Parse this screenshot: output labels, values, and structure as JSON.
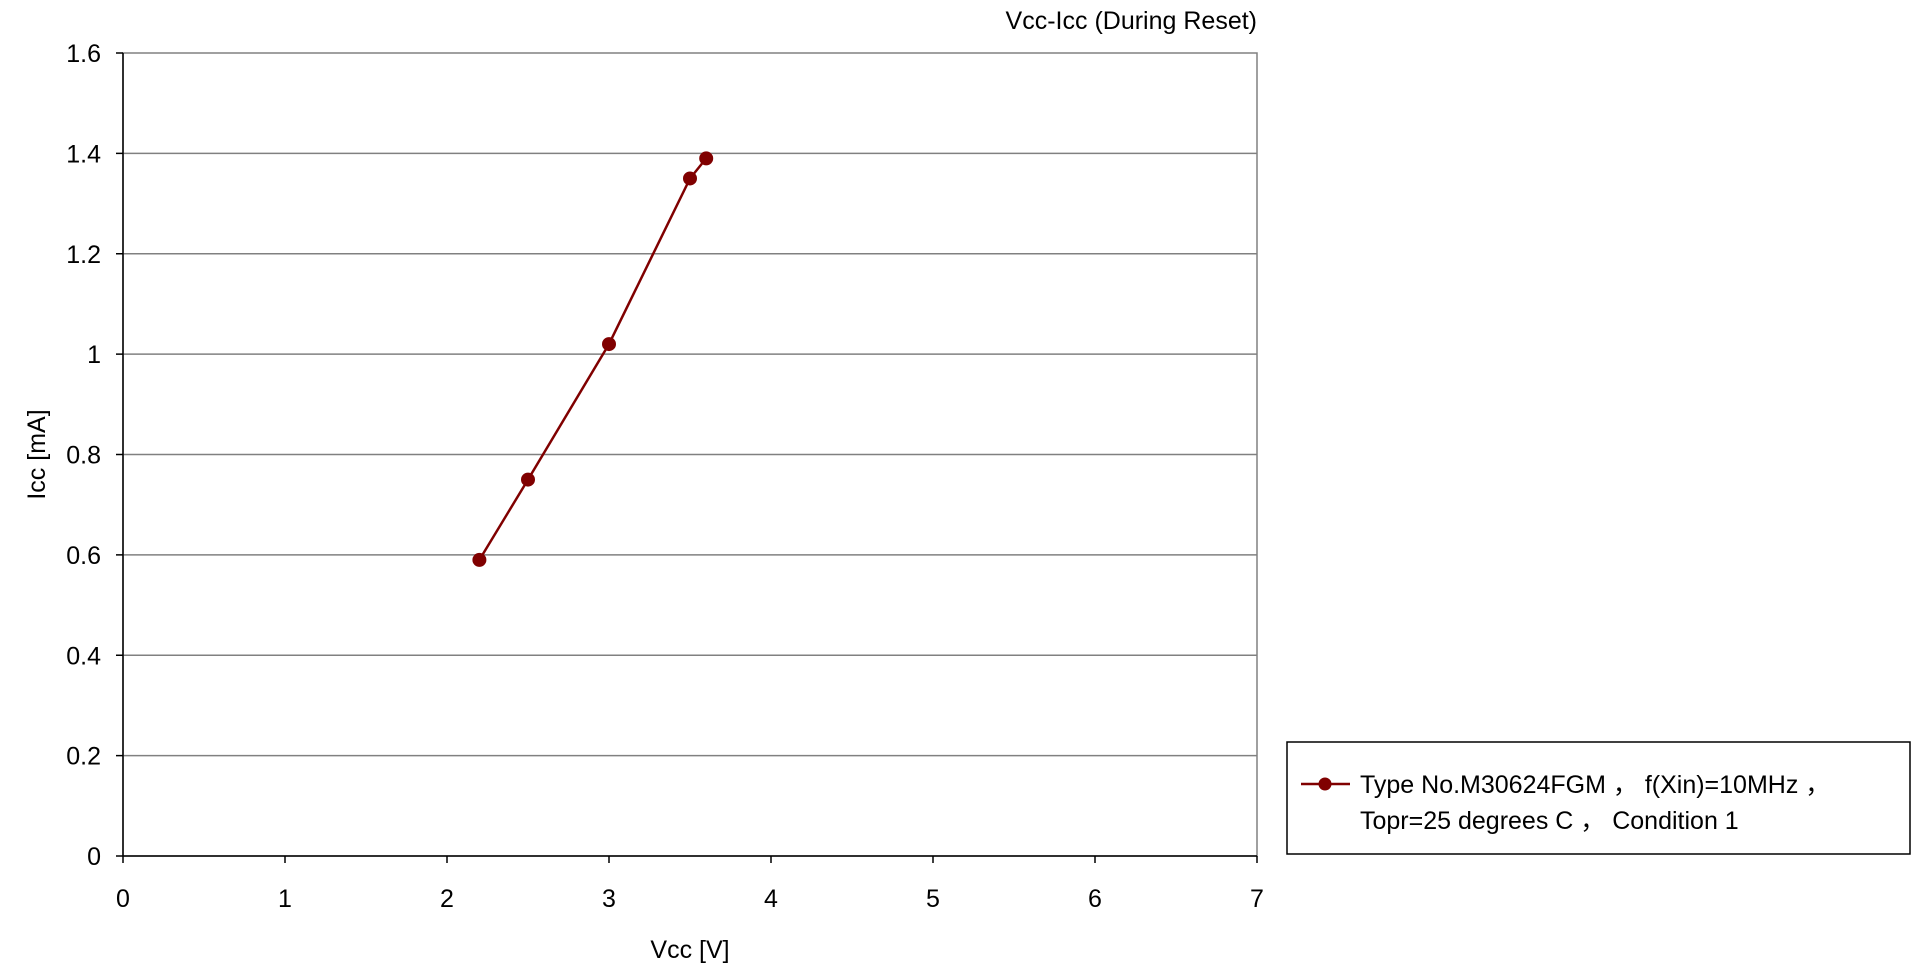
{
  "chart_data": {
    "type": "line",
    "title": "Vcc-Icc (During Reset)",
    "xlabel": "Vcc [V]",
    "ylabel": "Icc [mA]",
    "xlim": [
      0,
      7
    ],
    "ylim": [
      0,
      1.6
    ],
    "x_ticks": [
      "0",
      "1",
      "2",
      "3",
      "4",
      "5",
      "6",
      "7"
    ],
    "y_ticks": [
      "0",
      "0.2",
      "0.4",
      "0.6",
      "0.8",
      "1",
      "1.2",
      "1.4",
      "1.6"
    ],
    "grid": "horizontal",
    "legend_position": "right",
    "series": [
      {
        "name": "Type No.M30624FGM ， f(Xin)=10MHz ， Topr=25 degrees C ， Condition 1",
        "legend_lines": [
          "Type No.M30624FGM ， f(Xin)=10MHz ，",
          "Topr=25 degrees C ， Condition 1"
        ],
        "color": "#800000",
        "marker": "circle",
        "x": [
          2.2,
          2.5,
          3.0,
          3.5,
          3.6
        ],
        "y": [
          0.59,
          0.75,
          1.02,
          1.35,
          1.39
        ]
      }
    ]
  }
}
